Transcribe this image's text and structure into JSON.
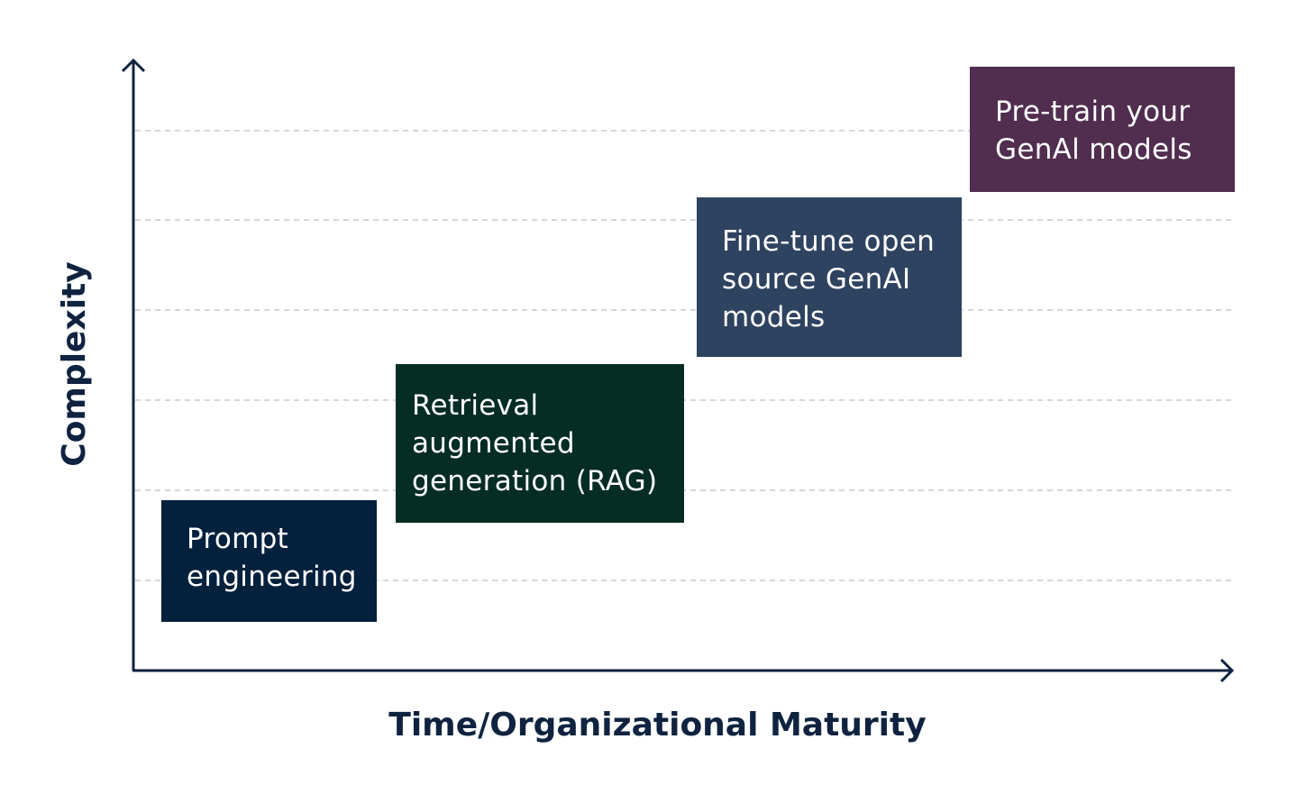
{
  "axes": {
    "x_title": "Time/Organizational Maturity",
    "y_title": "Complexity"
  },
  "stages": [
    {
      "label": "Prompt engineering",
      "color": "#03203d"
    },
    {
      "label": "Retrieval augmented generation (RAG)",
      "color": "#052d24"
    },
    {
      "label": "Fine-tune open source GenAI models",
      "color": "#2e4360"
    },
    {
      "label": "Pre-train your GenAl models",
      "color": "#512d50"
    }
  ],
  "colors": {
    "axis": "#0f2340",
    "gridline": "#c8c8c8",
    "background": "#ffffff"
  },
  "grid": true
}
